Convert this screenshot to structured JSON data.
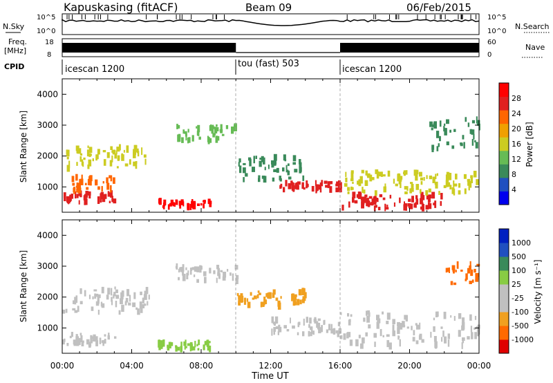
{
  "header": {
    "station": "Kapuskasing (fitACF)",
    "beam": "Beam 09",
    "date": "06/Feb/2015"
  },
  "status_panels": {
    "nsky_label": "N.Sky",
    "nsky_ticks": [
      "10^5",
      "10^0"
    ],
    "nsearch_label": "N.Search",
    "nsearch_ticks": [
      "10^5",
      "10^0"
    ],
    "freq_label": "Freq.",
    "freq_unit": "[MHz]",
    "freq_ticks": [
      "18",
      "8"
    ],
    "nave_label": "Nave",
    "nave_ticks": [
      "60",
      "0"
    ],
    "cpid_label": "CPID"
  },
  "cpid_segments": [
    {
      "label": "icescan 1200",
      "start": 0,
      "end": 10
    },
    {
      "label": "tou (fast) 503",
      "start": 10,
      "end": 16
    },
    {
      "label": "icescan 1200",
      "start": 16,
      "end": 24
    }
  ],
  "colors": {
    "power_scale": [
      "#0000ee",
      "#2050c0",
      "#3a8a5a",
      "#66bb55",
      "#cccc22",
      "#f0a000",
      "#ff6600",
      "#e02020",
      "#ff0000"
    ],
    "velocity_scale": [
      "#e00000",
      "#ff6a00",
      "#f0a020",
      "#c0c0c0",
      "#c0c0c0",
      "#88cc44",
      "#3a8a5a",
      "#2050c0",
      "#0020c0"
    ]
  },
  "chart_data": [
    {
      "type": "heatmap",
      "title": "Power",
      "xlabel": "Time UT",
      "ylabel": "Slant Range [km]",
      "xlim": [
        0,
        24
      ],
      "ylim": [
        180,
        4500
      ],
      "x_ticks": [
        "00:00",
        "04:00",
        "08:00",
        "12:00",
        "16:00",
        "20:00",
        "00:00"
      ],
      "y_ticks": [
        1000,
        2000,
        3000,
        4000
      ],
      "colorbar_label": "Power [dB]",
      "colorbar_ticks": [
        4,
        8,
        12,
        16,
        20,
        24,
        28
      ],
      "features": [
        {
          "t0": 0,
          "t1": 3,
          "r0": 500,
          "r1": 800,
          "level": 7
        },
        {
          "t0": 0.5,
          "t1": 3,
          "r0": 850,
          "r1": 1350,
          "level": 6
        },
        {
          "t0": 0,
          "t1": 5,
          "r0": 1600,
          "r1": 2300,
          "level": 4
        },
        {
          "t0": 5.5,
          "t1": 8.5,
          "r0": 350,
          "r1": 550,
          "level": 8
        },
        {
          "t0": 6.5,
          "t1": 10,
          "r0": 2500,
          "r1": 3000,
          "level": 3
        },
        {
          "t0": 10,
          "t1": 14,
          "r0": 1200,
          "r1": 2000,
          "level": 2
        },
        {
          "t0": 12.5,
          "t1": 16,
          "r0": 900,
          "r1": 1150,
          "level": 7
        },
        {
          "t0": 16,
          "t1": 22,
          "r0": 300,
          "r1": 750,
          "level": 7
        },
        {
          "t0": 16,
          "t1": 24,
          "r0": 800,
          "r1": 1500,
          "level": 4
        },
        {
          "t0": 21,
          "t1": 24,
          "r0": 2200,
          "r1": 3200,
          "level": 2
        }
      ]
    },
    {
      "type": "heatmap",
      "title": "Velocity",
      "xlabel": "Time UT",
      "ylabel": "Slant Range [km]",
      "xlim": [
        0,
        24
      ],
      "ylim": [
        180,
        4500
      ],
      "x_ticks": [
        "00:00",
        "04:00",
        "08:00",
        "12:00",
        "16:00",
        "20:00",
        "00:00"
      ],
      "y_ticks": [
        1000,
        2000,
        3000,
        4000
      ],
      "colorbar_label": "Velocity [m s⁻¹]",
      "colorbar_ticks": [
        1000,
        500,
        100,
        25,
        -25,
        -100,
        -500,
        -1000
      ],
      "features": [
        {
          "t0": 0,
          "t1": 3,
          "r0": 450,
          "r1": 800,
          "level": 4
        },
        {
          "t0": 0,
          "t1": 5,
          "r0": 1500,
          "r1": 2300,
          "level": 4
        },
        {
          "t0": 5.5,
          "t1": 8.5,
          "r0": 300,
          "r1": 550,
          "level": 5
        },
        {
          "t0": 6.5,
          "t1": 10,
          "r0": 2500,
          "r1": 3000,
          "level": 4
        },
        {
          "t0": 10,
          "t1": 14,
          "r0": 1700,
          "r1": 2200,
          "level": 2
        },
        {
          "t0": 12,
          "t1": 16,
          "r0": 800,
          "r1": 1300,
          "level": 4
        },
        {
          "t0": 16,
          "t1": 24,
          "r0": 400,
          "r1": 1500,
          "level": 4
        },
        {
          "t0": 22,
          "t1": 24,
          "r0": 2400,
          "r1": 3100,
          "level": 1
        }
      ]
    }
  ]
}
